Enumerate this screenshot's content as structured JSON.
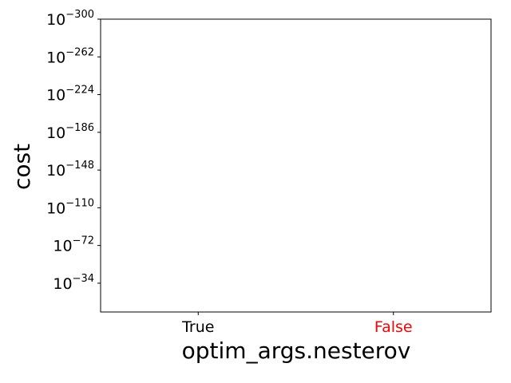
{
  "chart_data": {
    "type": "bar",
    "title": "",
    "xlabel": "optim_args.nesterov",
    "ylabel": "cost",
    "yscale": "log",
    "categories": [
      {
        "label": "True",
        "color": "#000000"
      },
      {
        "label": "False",
        "color": "#ff0000"
      }
    ],
    "series": [],
    "y_ticks": [
      {
        "base": "10",
        "exp": "−300",
        "value": 1e-300
      },
      {
        "base": "10",
        "exp": "−262",
        "value": 1e-262
      },
      {
        "base": "10",
        "exp": "−224",
        "value": 1e-224
      },
      {
        "base": "10",
        "exp": "−186",
        "value": 1e-186
      },
      {
        "base": "10",
        "exp": "−148",
        "value": 1e-148
      },
      {
        "base": "10",
        "exp": "−110",
        "value": 1e-110
      },
      {
        "base": "10",
        "exp": "−72",
        "value": 1e-72
      },
      {
        "base": "10",
        "exp": "−34",
        "value": 1e-34
      }
    ],
    "ylim": [
      1e-300,
      1e-05
    ],
    "grid": false,
    "legend": "none"
  }
}
